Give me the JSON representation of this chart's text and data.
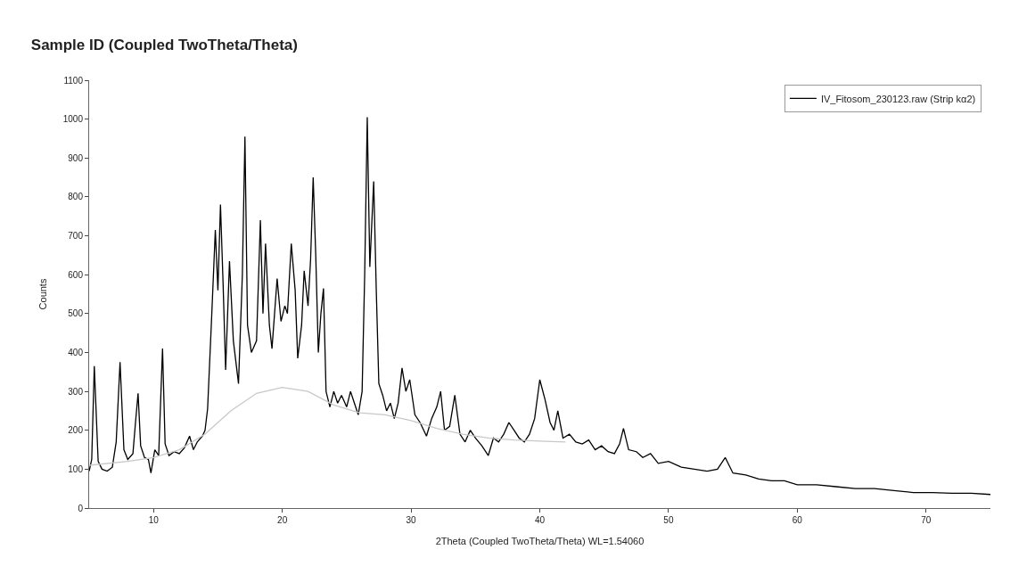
{
  "chart_data": {
    "type": "line",
    "title": "Sample ID (Coupled TwoTheta/Theta)",
    "xlabel": "2Theta (Coupled TwoTheta/Theta) WL=1.54060",
    "ylabel": "Counts",
    "xlim": [
      5,
      75
    ],
    "xticks": [
      10,
      20,
      30,
      40,
      50,
      60,
      70
    ],
    "ylim": [
      0,
      1100
    ],
    "yticks": [
      0,
      100,
      200,
      300,
      400,
      500,
      600,
      700,
      800,
      900,
      1000,
      1100
    ],
    "legend": "top right",
    "marker": "none",
    "line_style": "solid",
    "series": [
      {
        "name": "IV_Fitosom_230123.raw (Strip kα2)",
        "color": "#000000",
        "x": [
          5.0,
          5.2,
          5.4,
          5.7,
          6.0,
          6.4,
          6.8,
          7.1,
          7.4,
          7.7,
          8.0,
          8.4,
          8.6,
          8.8,
          9.0,
          9.3,
          9.6,
          9.8,
          10.1,
          10.4,
          10.7,
          10.9,
          11.2,
          11.6,
          12.0,
          12.4,
          12.8,
          13.1,
          13.4,
          13.8,
          14.0,
          14.2,
          14.5,
          14.8,
          15.0,
          15.2,
          15.4,
          15.6,
          15.9,
          16.2,
          16.6,
          16.9,
          17.1,
          17.3,
          17.6,
          18.0,
          18.3,
          18.5,
          18.7,
          19.0,
          19.2,
          19.6,
          19.9,
          20.2,
          20.4,
          20.7,
          21.0,
          21.2,
          21.5,
          21.7,
          22.0,
          22.2,
          22.4,
          22.6,
          22.8,
          23.0,
          23.2,
          23.4,
          23.7,
          24.0,
          24.3,
          24.6,
          25.0,
          25.3,
          25.6,
          25.9,
          26.2,
          26.4,
          26.6,
          26.8,
          27.1,
          27.3,
          27.5,
          27.8,
          28.1,
          28.4,
          28.7,
          29.0,
          29.3,
          29.6,
          29.9,
          30.3,
          30.7,
          31.2,
          31.6,
          32.0,
          32.3,
          32.6,
          33.0,
          33.4,
          33.8,
          34.2,
          34.6,
          35.0,
          35.5,
          36.0,
          36.4,
          36.8,
          37.2,
          37.6,
          38.0,
          38.4,
          38.8,
          39.2,
          39.6,
          40.0,
          40.4,
          40.8,
          41.1,
          41.4,
          41.8,
          42.3,
          42.8,
          43.3,
          43.8,
          44.3,
          44.8,
          45.3,
          45.8,
          46.2,
          46.5,
          46.9,
          47.5,
          48.0,
          48.6,
          49.2,
          50.0,
          51.0,
          52.0,
          53.0,
          53.8,
          54.4,
          55.0,
          56.0,
          57.0,
          58.0,
          59.0,
          60.0,
          61.5,
          63.0,
          64.5,
          66.0,
          67.5,
          69.0,
          70.5,
          72.0,
          73.5,
          75.0
        ],
        "values": [
          95,
          125,
          365,
          120,
          100,
          95,
          105,
          170,
          375,
          150,
          125,
          140,
          220,
          295,
          160,
          130,
          125,
          90,
          150,
          135,
          410,
          165,
          135,
          145,
          140,
          155,
          185,
          150,
          170,
          185,
          200,
          255,
          480,
          715,
          560,
          780,
          580,
          355,
          635,
          430,
          320,
          600,
          955,
          470,
          400,
          430,
          740,
          500,
          680,
          470,
          410,
          590,
          480,
          520,
          500,
          680,
          560,
          385,
          470,
          610,
          520,
          640,
          850,
          650,
          400,
          500,
          565,
          300,
          260,
          300,
          270,
          290,
          260,
          300,
          270,
          240,
          300,
          600,
          1005,
          620,
          840,
          560,
          320,
          290,
          250,
          270,
          230,
          270,
          360,
          300,
          330,
          240,
          220,
          185,
          230,
          260,
          300,
          200,
          210,
          290,
          190,
          170,
          200,
          180,
          160,
          135,
          180,
          170,
          190,
          220,
          200,
          180,
          170,
          190,
          230,
          330,
          280,
          220,
          200,
          250,
          180,
          190,
          170,
          165,
          175,
          150,
          160,
          145,
          140,
          165,
          205,
          150,
          145,
          130,
          140,
          115,
          120,
          105,
          100,
          95,
          100,
          130,
          90,
          85,
          75,
          70,
          70,
          60,
          60,
          55,
          50,
          50,
          45,
          40,
          40,
          38,
          38,
          35
        ]
      },
      {
        "color": "#c8c8c8",
        "x": [
          5,
          8,
          10,
          12,
          14,
          16,
          18,
          20,
          22,
          24,
          26,
          28,
          30,
          32,
          34,
          36,
          38,
          40,
          42
        ],
        "values": [
          110,
          120,
          130,
          150,
          190,
          250,
          295,
          310,
          300,
          265,
          245,
          240,
          225,
          205,
          190,
          180,
          175,
          172,
          170
        ]
      }
    ]
  }
}
